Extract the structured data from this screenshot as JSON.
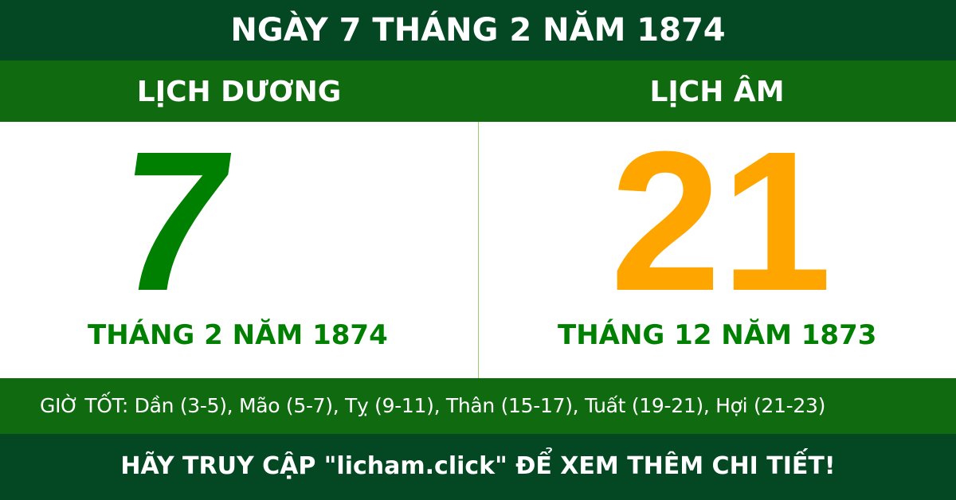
{
  "title": "NGÀY 7 THÁNG 2 NĂM 1874",
  "solar": {
    "label": "LỊCH DƯƠNG",
    "day": "7",
    "month_year": "THÁNG 2 NĂM 1874",
    "color": "#008000"
  },
  "lunar": {
    "label": "LỊCH ÂM",
    "day": "21",
    "month_year": "THÁNG 12 NĂM 1873",
    "color": "#ffa500"
  },
  "good_hours": "GIỜ TỐT: Dần (3-5), Mão (5-7), Tỵ (9-11), Thân (15-17), Tuất (19-21), Hợi (21-23)",
  "footer": "HÃY TRUY CẬP \"licham.click\" ĐỂ XEM THÊM CHI TIẾT!"
}
